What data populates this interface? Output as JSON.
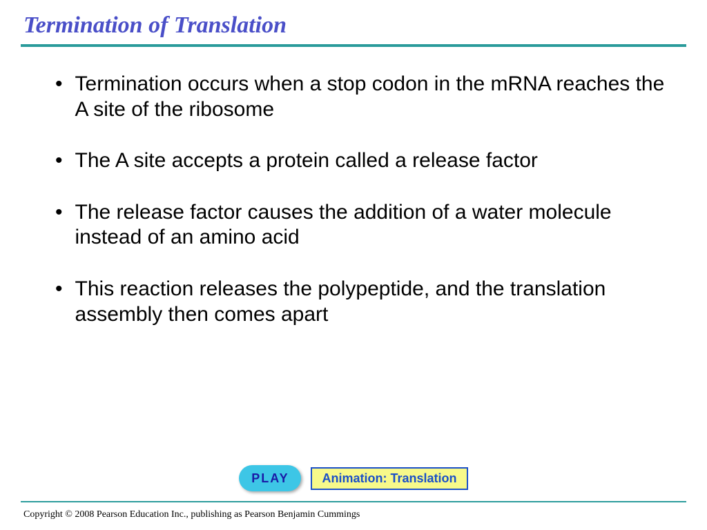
{
  "title": "Termination of Translation",
  "title_color": "#4a4fc8",
  "title_fontsize": 34,
  "rule_color": "#2a9b9b",
  "bullets": [
    "Termination occurs when a stop codon in the mRNA reaches the A site of the ribosome",
    "The A site accepts a protein called a release factor",
    "The release factor causes the addition of a water molecule instead of an amino acid",
    "This reaction releases the polypeptide, and the translation assembly then comes apart"
  ],
  "bullet_fontsize": 30,
  "play_button": {
    "label": "PLAY",
    "bg_color": "#3dc6e6",
    "text_color": "#1a1aa6"
  },
  "animation_label": {
    "text": "Animation: Translation",
    "border_color": "#1a4fc8",
    "text_color": "#1a4fc8",
    "bg_color": "#f7f98a"
  },
  "copyright": "Copyright © 2008 Pearson Education Inc., publishing  as Pearson Benjamin Cummings"
}
